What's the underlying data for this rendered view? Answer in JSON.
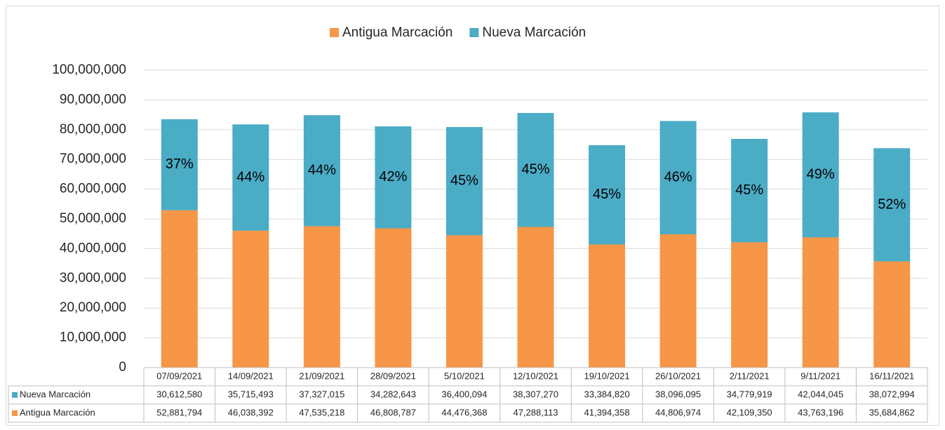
{
  "chart_data": {
    "type": "stacked_bar",
    "categories": [
      "07/09/2021",
      "14/09/2021",
      "21/09/2021",
      "28/09/2021",
      "5/10/2021",
      "12/10/2021",
      "19/10/2021",
      "26/10/2021",
      "2/11/2021",
      "9/11/2021",
      "16/11/2021"
    ],
    "series": [
      {
        "name": "Antigua Marcación",
        "color": "#f79646",
        "values": [
          52881794,
          46038392,
          47535218,
          46808787,
          44476368,
          47288113,
          41394358,
          44806974,
          42109350,
          43763196,
          35684862
        ],
        "value_labels": [
          "52,881,794",
          "46,038,392",
          "47,535,218",
          "46,808,787",
          "44,476,368",
          "47,288,113",
          "41,394,358",
          "44,806,974",
          "42,109,350",
          "43,763,196",
          "35,684,862"
        ]
      },
      {
        "name": "Nueva Marcación",
        "color": "#4bacc6",
        "values": [
          30612580,
          35715493,
          37327015,
          34282643,
          36400094,
          38307270,
          33384820,
          38096095,
          34779919,
          42044045,
          38072994
        ],
        "value_labels": [
          "30,612,580",
          "35,715,493",
          "37,327,015",
          "34,282,643",
          "36,400,094",
          "38,307,270",
          "33,384,820",
          "38,096,095",
          "34,779,919",
          "42,044,045",
          "38,072,994"
        ]
      }
    ],
    "annotations": [
      "37%",
      "44%",
      "44%",
      "42%",
      "45%",
      "45%",
      "45%",
      "46%",
      "45%",
      "49%",
      "52%"
    ],
    "ylim": [
      0,
      100000000
    ],
    "yticks": [
      0,
      {
        "value": 10000000,
        "label": "10,000,000"
      },
      {
        "value": 20000000,
        "label": "20,000,000"
      },
      {
        "value": 30000000,
        "label": "30,000,000"
      },
      {
        "value": 40000000,
        "label": "40,000,000"
      },
      {
        "value": 50000000,
        "label": "50,000,000"
      },
      {
        "value": 60000000,
        "label": "60,000,000"
      },
      {
        "value": 70000000,
        "label": "70,000,000"
      },
      {
        "value": 80000000,
        "label": "80,000,000"
      },
      {
        "value": 90000000,
        "label": "90,000,000"
      },
      {
        "value": 100000000,
        "label": "100,000,000"
      }
    ],
    "grid": true,
    "legend": "top"
  }
}
